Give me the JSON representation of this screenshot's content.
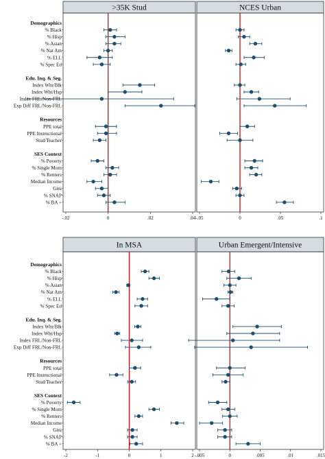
{
  "styles": {
    "header_fill": "#d3dde2",
    "zero_line": "#cc1111",
    "marker": "#1d4e6e",
    "frame": "#333333"
  },
  "rows": [
    {
      "type": "group",
      "label": "Demographics"
    },
    {
      "type": "var",
      "label": "% Black"
    },
    {
      "type": "var",
      "label": "% Hisp"
    },
    {
      "type": "var",
      "label": "% Asian"
    },
    {
      "type": "var",
      "label": "% Nat Am"
    },
    {
      "type": "var",
      "label": "% ELL"
    },
    {
      "type": "var",
      "label": "% Spec Ed"
    },
    {
      "type": "gap"
    },
    {
      "type": "group",
      "label": "Edu. Inq. & Seg."
    },
    {
      "type": "var",
      "label": "Index Wht/Blk"
    },
    {
      "type": "var",
      "label": "Index Wht/Hsp"
    },
    {
      "type": "var",
      "label": "Index FRL/Non-FRL"
    },
    {
      "type": "var",
      "label": "Exp Diff FRL/Non-FRL"
    },
    {
      "type": "gap"
    },
    {
      "type": "group",
      "label": "Resources"
    },
    {
      "type": "var",
      "label": "PPE total"
    },
    {
      "type": "var",
      "label": "PPE Instructional"
    },
    {
      "type": "var",
      "label": "Stud/Teacher"
    },
    {
      "type": "gap"
    },
    {
      "type": "group",
      "label": "SES Context"
    },
    {
      "type": "var",
      "label": "% Poverty"
    },
    {
      "type": "var",
      "label": "% Single Mom"
    },
    {
      "type": "var",
      "label": "% Renters"
    },
    {
      "type": "var",
      "label": "Median Income"
    },
    {
      "type": "var",
      "label": "Gini"
    },
    {
      "type": "var",
      "label": "% SNAP"
    },
    {
      "type": "var",
      "label": "% BA +"
    }
  ],
  "chart_data": [
    {
      "type": "scatter",
      "title": ">35K Stud",
      "xlim": [
        -0.02,
        0.04
      ],
      "ticks": [
        -0.02,
        0,
        0.02,
        0.04
      ],
      "tick_labels": [
        "-.02",
        "0",
        ".02",
        ".04"
      ],
      "points": [
        {
          "est": 0.001,
          "lo": -0.002,
          "hi": 0.004
        },
        {
          "est": 0.003,
          "lo": -0.001,
          "hi": 0.008
        },
        {
          "est": 0.003,
          "lo": -0.001,
          "hi": 0.006
        },
        {
          "est": 0.0,
          "lo": -0.002,
          "hi": 0.002
        },
        {
          "est": -0.004,
          "lo": -0.01,
          "hi": 0.002
        },
        {
          "est": -0.003,
          "lo": -0.007,
          "hi": 0.001
        },
        {
          "est": 0.015,
          "lo": 0.007,
          "hi": 0.022
        },
        {
          "est": 0.008,
          "lo": 0.0,
          "hi": 0.016
        },
        {
          "est": -0.003,
          "lo": -0.038,
          "hi": 0.031
        },
        {
          "est": 0.025,
          "lo": 0.008,
          "hi": 0.041
        },
        {
          "est": -0.001,
          "lo": -0.006,
          "hi": 0.004
        },
        {
          "est": -0.001,
          "lo": -0.005,
          "hi": 0.004
        },
        {
          "est": -0.004,
          "lo": -0.007,
          "hi": -0.001
        },
        {
          "est": -0.005,
          "lo": -0.008,
          "hi": -0.002
        },
        {
          "est": 0.002,
          "lo": -0.001,
          "hi": 0.005
        },
        {
          "est": 0.001,
          "lo": -0.002,
          "hi": 0.004
        },
        {
          "est": -0.007,
          "lo": -0.01,
          "hi": -0.003
        },
        {
          "est": -0.003,
          "lo": -0.006,
          "hi": 0.0
        },
        {
          "est": -0.002,
          "lo": -0.005,
          "hi": 0.001
        },
        {
          "est": 0.003,
          "lo": -0.001,
          "hi": 0.008
        }
      ]
    },
    {
      "type": "scatter",
      "title": "NCES Urban",
      "xlim": [
        -0.05,
        0.1
      ],
      "ticks": [
        -0.05,
        0,
        0.05,
        0.1
      ],
      "tick_labels": [
        "-.05",
        "0",
        ".05",
        ".1"
      ],
      "points": [
        {
          "est": 0.0,
          "lo": -0.005,
          "hi": 0.005
        },
        {
          "est": 0.005,
          "lo": -0.002,
          "hi": 0.012
        },
        {
          "est": 0.019,
          "lo": 0.012,
          "hi": 0.027
        },
        {
          "est": -0.014,
          "lo": -0.018,
          "hi": -0.01
        },
        {
          "est": 0.017,
          "lo": 0.005,
          "hi": 0.03
        },
        {
          "est": 0.001,
          "lo": -0.005,
          "hi": 0.007
        },
        {
          "est": 0.0,
          "lo": -0.007,
          "hi": 0.006
        },
        {
          "est": 0.014,
          "lo": 0.005,
          "hi": 0.023
        },
        {
          "est": 0.024,
          "lo": -0.004,
          "hi": 0.062
        },
        {
          "est": 0.043,
          "lo": 0.005,
          "hi": 0.082
        },
        {
          "est": 0.009,
          "lo": 0.0,
          "hi": 0.018
        },
        {
          "est": -0.014,
          "lo": -0.025,
          "hi": -0.003
        },
        {
          "est": 0.0,
          "lo": -0.016,
          "hi": 0.016
        },
        {
          "est": 0.018,
          "lo": 0.006,
          "hi": 0.028
        },
        {
          "est": 0.014,
          "lo": 0.006,
          "hi": 0.022
        },
        {
          "est": 0.02,
          "lo": 0.012,
          "hi": 0.027
        },
        {
          "est": -0.036,
          "lo": -0.048,
          "hi": -0.026
        },
        {
          "est": -0.004,
          "lo": -0.009,
          "hi": 0.002
        },
        {
          "est": 0.0,
          "lo": -0.005,
          "hi": 0.005
        },
        {
          "est": 0.055,
          "lo": 0.045,
          "hi": 0.066
        }
      ]
    },
    {
      "type": "scatter",
      "title": "In MSA",
      "xlim": [
        -2,
        2
      ],
      "ticks": [
        -2,
        -1,
        0,
        1,
        2
      ],
      "tick_labels": [
        "-2",
        "-1",
        "0",
        "1",
        "2"
      ],
      "points": [
        {
          "est": 0.5,
          "lo": 0.38,
          "hi": 0.62
        },
        {
          "est": 0.78,
          "lo": 0.62,
          "hi": 0.95
        },
        {
          "est": -0.03,
          "lo": -0.08,
          "hi": 0.02
        },
        {
          "est": -0.42,
          "lo": -0.52,
          "hi": -0.32
        },
        {
          "est": 0.42,
          "lo": 0.25,
          "hi": 0.58
        },
        {
          "est": 0.38,
          "lo": 0.18,
          "hi": 0.58
        },
        {
          "est": 0.27,
          "lo": 0.17,
          "hi": 0.37
        },
        {
          "est": -0.38,
          "lo": -0.46,
          "hi": -0.3
        },
        {
          "est": 0.08,
          "lo": -0.25,
          "hi": 0.42
        },
        {
          "est": 0.3,
          "lo": -0.12,
          "hi": 0.68
        },
        {
          "est": 0.18,
          "lo": 0.0,
          "hi": 0.36
        },
        {
          "est": -0.4,
          "lo": -0.62,
          "hi": -0.2
        },
        {
          "est": 0.08,
          "lo": -0.04,
          "hi": 0.2
        },
        {
          "est": -1.75,
          "lo": -1.95,
          "hi": -1.55
        },
        {
          "est": 0.78,
          "lo": 0.62,
          "hi": 0.95
        },
        {
          "est": 0.3,
          "lo": 0.18,
          "hi": 0.42
        },
        {
          "est": 1.5,
          "lo": 1.32,
          "hi": 1.72
        },
        {
          "est": 0.1,
          "lo": -0.05,
          "hi": 0.25
        },
        {
          "est": 0.1,
          "lo": -0.05,
          "hi": 0.25
        },
        {
          "est": 0.22,
          "lo": 0.02,
          "hi": 0.42
        }
      ]
    },
    {
      "type": "scatter",
      "title": "Urban Emergent/Intensive",
      "xlim": [
        -0.005,
        0.015
      ],
      "ticks": [
        -0.005,
        0,
        0.005,
        0.01,
        0.015
      ],
      "tick_labels": [
        "-.005",
        "0",
        ".005",
        ".01",
        ".015"
      ],
      "points": [
        {
          "est": -0.0002,
          "lo": -0.0013,
          "hi": 0.0008
        },
        {
          "est": 0.0015,
          "lo": -0.0005,
          "hi": 0.0035
        },
        {
          "est": 0.0,
          "lo": -0.001,
          "hi": 0.001
        },
        {
          "est": 0.0001,
          "lo": -0.0003,
          "hi": 0.0005
        },
        {
          "est": -0.0022,
          "lo": -0.0045,
          "hi": 0.0
        },
        {
          "est": -0.0003,
          "lo": -0.0013,
          "hi": 0.0007
        },
        {
          "est": 0.0045,
          "lo": 0.0005,
          "hi": 0.0085
        },
        {
          "est": 0.0038,
          "lo": -0.0005,
          "hi": 0.0082
        },
        {
          "est": 0.0005,
          "lo": -0.0068,
          "hi": 0.0082
        },
        {
          "est": 0.0035,
          "lo": -0.0058,
          "hi": 0.0128
        },
        {
          "est": 0.0,
          "lo": -0.0022,
          "hi": 0.0025
        },
        {
          "est": -0.0003,
          "lo": -0.0028,
          "hi": 0.0022
        },
        {
          "est": -0.0007,
          "lo": -0.0013,
          "hi": 0.0
        },
        {
          "est": -0.002,
          "lo": -0.0035,
          "hi": -0.0005
        },
        {
          "est": -0.0003,
          "lo": -0.0013,
          "hi": 0.0008
        },
        {
          "est": 0.0,
          "lo": -0.0012,
          "hi": 0.0012
        },
        {
          "est": -0.003,
          "lo": -0.005,
          "hi": -0.0012
        },
        {
          "est": -0.0008,
          "lo": -0.002,
          "hi": 0.0003
        },
        {
          "est": -0.0008,
          "lo": -0.002,
          "hi": 0.0003
        },
        {
          "est": 0.003,
          "lo": 0.001,
          "hi": 0.005
        }
      ]
    }
  ]
}
